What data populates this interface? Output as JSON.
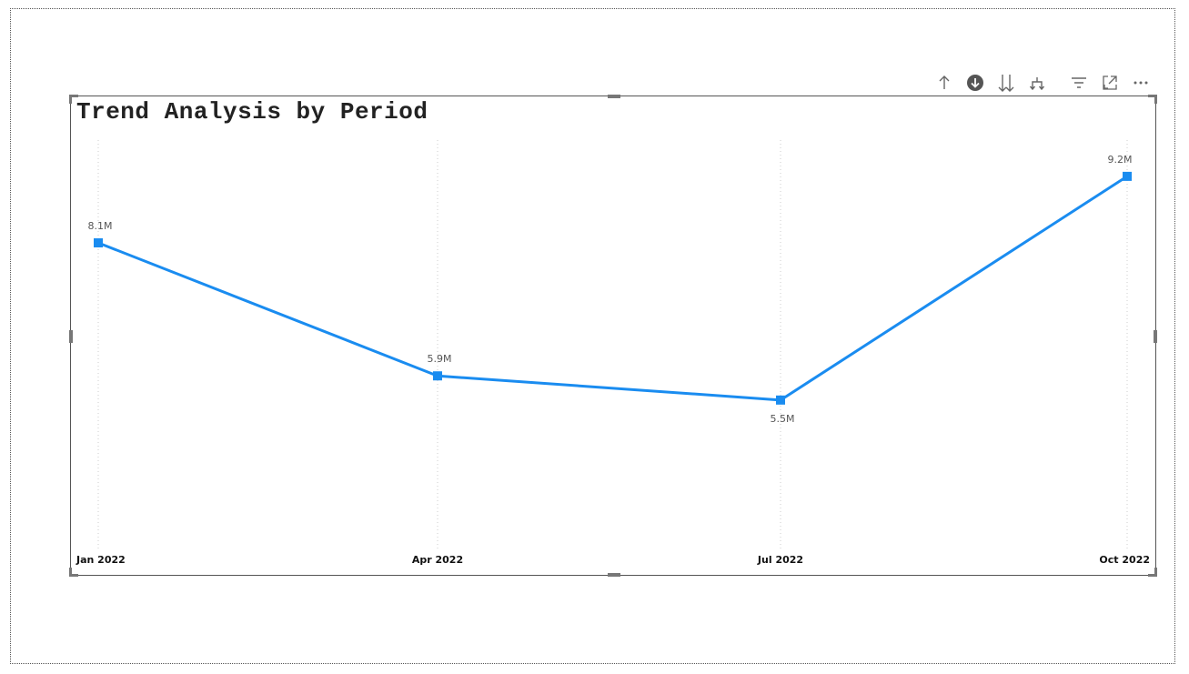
{
  "toolbar": {
    "icons": [
      "arrow-up-icon",
      "arrow-down-circle-icon",
      "double-arrow-down-icon",
      "fork-icon",
      "filter-icon",
      "focus-mode-icon",
      "more-options-icon"
    ]
  },
  "chart_data": {
    "type": "line",
    "title": "Trend Analysis by Period",
    "xlabel": "",
    "ylabel": "",
    "categories": [
      "Jan 2022",
      "Apr 2022",
      "Jul 2022",
      "Oct 2022"
    ],
    "series": [
      {
        "values": [
          8100000,
          5900000,
          5500000,
          9200000
        ],
        "labels": [
          "8.1M",
          "5.9M",
          "5.5M",
          "9.2M"
        ],
        "color": "#1a8cf0"
      }
    ],
    "ylim": [
      3000000,
      9800000
    ],
    "grid": "vertical-dotted",
    "legend": "none",
    "marker": "square"
  }
}
